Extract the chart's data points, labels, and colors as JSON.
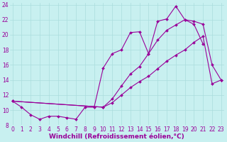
{
  "line1_x": [
    0,
    1,
    2,
    3,
    4,
    5,
    6,
    7,
    8,
    9,
    10,
    11,
    12,
    13,
    14,
    15,
    16,
    17,
    18,
    19,
    20,
    21
  ],
  "line1_y": [
    11.2,
    10.4,
    9.4,
    8.8,
    9.2,
    9.2,
    9.0,
    8.8,
    10.4,
    10.4,
    15.6,
    17.5,
    18.0,
    20.3,
    20.4,
    17.5,
    21.8,
    22.1,
    23.8,
    22.0,
    21.4,
    18.8
  ],
  "line2_x": [
    0,
    10,
    11,
    12,
    13,
    14,
    15,
    16,
    17,
    18,
    19,
    20,
    21,
    22,
    23
  ],
  "line2_y": [
    11.2,
    10.4,
    11.5,
    13.2,
    14.8,
    15.8,
    17.5,
    19.3,
    20.6,
    21.3,
    22.0,
    21.8,
    21.4,
    16.0,
    14.0
  ],
  "line3_x": [
    0,
    10,
    11,
    12,
    13,
    14,
    15,
    16,
    17,
    18,
    19,
    20,
    21,
    22,
    23
  ],
  "line3_y": [
    11.2,
    10.4,
    11.0,
    12.0,
    13.0,
    13.8,
    14.5,
    15.5,
    16.5,
    17.3,
    18.0,
    19.0,
    19.8,
    13.5,
    14.0
  ],
  "color": "#990099",
  "bg_color": "#c8f0f0",
  "grid_color": "#aadddd",
  "xlabel": "Windchill (Refroidissement éolien,°C)",
  "xlim": [
    -0.3,
    23.3
  ],
  "ylim": [
    8,
    24.2
  ],
  "yticks": [
    8,
    10,
    12,
    14,
    16,
    18,
    20,
    22,
    24
  ],
  "xticks": [
    0,
    1,
    2,
    3,
    4,
    5,
    6,
    7,
    8,
    9,
    10,
    11,
    12,
    13,
    14,
    15,
    16,
    17,
    18,
    19,
    20,
    21,
    22,
    23
  ],
  "xlabel_fontsize": 6.5,
  "tick_fontsize": 5.5
}
